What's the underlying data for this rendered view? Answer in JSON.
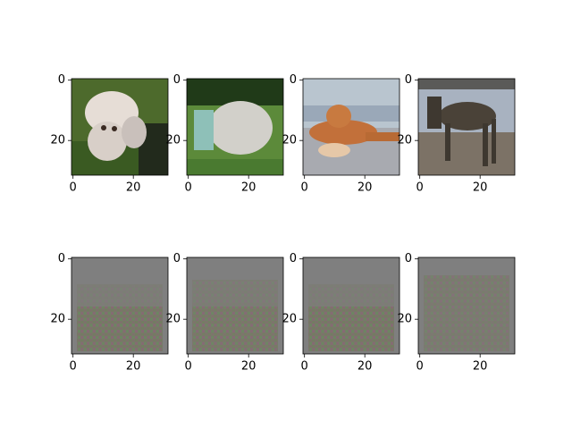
{
  "chart_data": [
    {
      "type": "image",
      "xlim": [
        -0.5,
        31.5
      ],
      "ylim": [
        31.5,
        -0.5
      ],
      "xticks": [
        0,
        20
      ],
      "yticks": [
        0,
        20
      ]
    },
    {
      "type": "image",
      "xlim": [
        -0.5,
        31.5
      ],
      "ylim": [
        31.5,
        -0.5
      ],
      "xticks": [
        0,
        20
      ],
      "yticks": [
        0,
        20
      ]
    },
    {
      "type": "image",
      "xlim": [
        -0.5,
        31.5
      ],
      "ylim": [
        31.5,
        -0.5
      ],
      "xticks": [
        0,
        20
      ],
      "yticks": [
        0,
        20
      ]
    },
    {
      "type": "image",
      "xlim": [
        -0.5,
        31.5
      ],
      "ylim": [
        31.5,
        -0.5
      ],
      "xticks": [
        0,
        20
      ],
      "yticks": [
        0,
        20
      ]
    },
    {
      "type": "image",
      "xlim": [
        -0.5,
        31.5
      ],
      "ylim": [
        31.5,
        -0.5
      ],
      "xticks": [
        0,
        20
      ],
      "yticks": [
        0,
        20
      ]
    },
    {
      "type": "image",
      "xlim": [
        -0.5,
        31.5
      ],
      "ylim": [
        31.5,
        -0.5
      ],
      "xticks": [
        0,
        20
      ],
      "yticks": [
        0,
        20
      ]
    },
    {
      "type": "image",
      "xlim": [
        -0.5,
        31.5
      ],
      "ylim": [
        31.5,
        -0.5
      ],
      "xticks": [
        0,
        20
      ],
      "yticks": [
        0,
        20
      ]
    },
    {
      "type": "image",
      "xlim": [
        -0.5,
        31.5
      ],
      "ylim": [
        31.5,
        -0.5
      ],
      "xticks": [
        0,
        20
      ],
      "yticks": [
        0,
        20
      ]
    }
  ]
}
